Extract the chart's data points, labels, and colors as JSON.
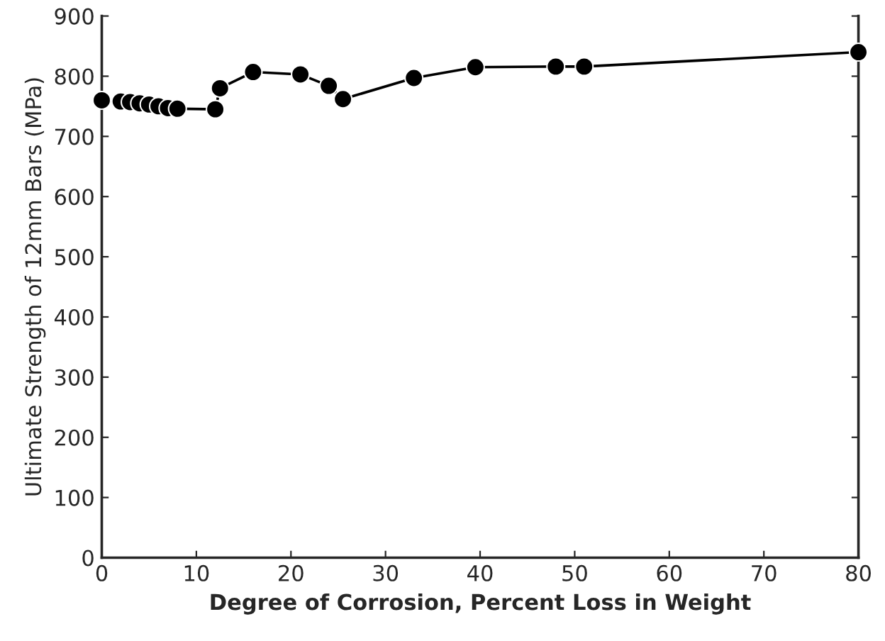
{
  "chart_data": {
    "type": "line",
    "xlabel": "Degree of Corrosion, Percent Loss in Weight",
    "ylabel": "Ultimate Strength of 12mm Bars (MPa)",
    "x": [
      0,
      2,
      3,
      4,
      5,
      6,
      7,
      8,
      12,
      12.5,
      16,
      21,
      24,
      25.5,
      33,
      39.5,
      48,
      51,
      80
    ],
    "series": [
      {
        "color": "#000000",
        "values": [
          760,
          758,
          757,
          755,
          753,
          750,
          747,
          746,
          745,
          780,
          807,
          803,
          784,
          762,
          797,
          815,
          816,
          816,
          840
        ]
      }
    ],
    "marker": "circle",
    "line_style": "solid",
    "grid": false,
    "legend": false,
    "xlim": [
      0,
      80
    ],
    "xticks": [
      0,
      10,
      20,
      30,
      40,
      50,
      60,
      70,
      80
    ],
    "ylim": [
      0,
      900
    ],
    "yticks": [
      0,
      100,
      200,
      300,
      400,
      500,
      600,
      700,
      800,
      900
    ]
  }
}
